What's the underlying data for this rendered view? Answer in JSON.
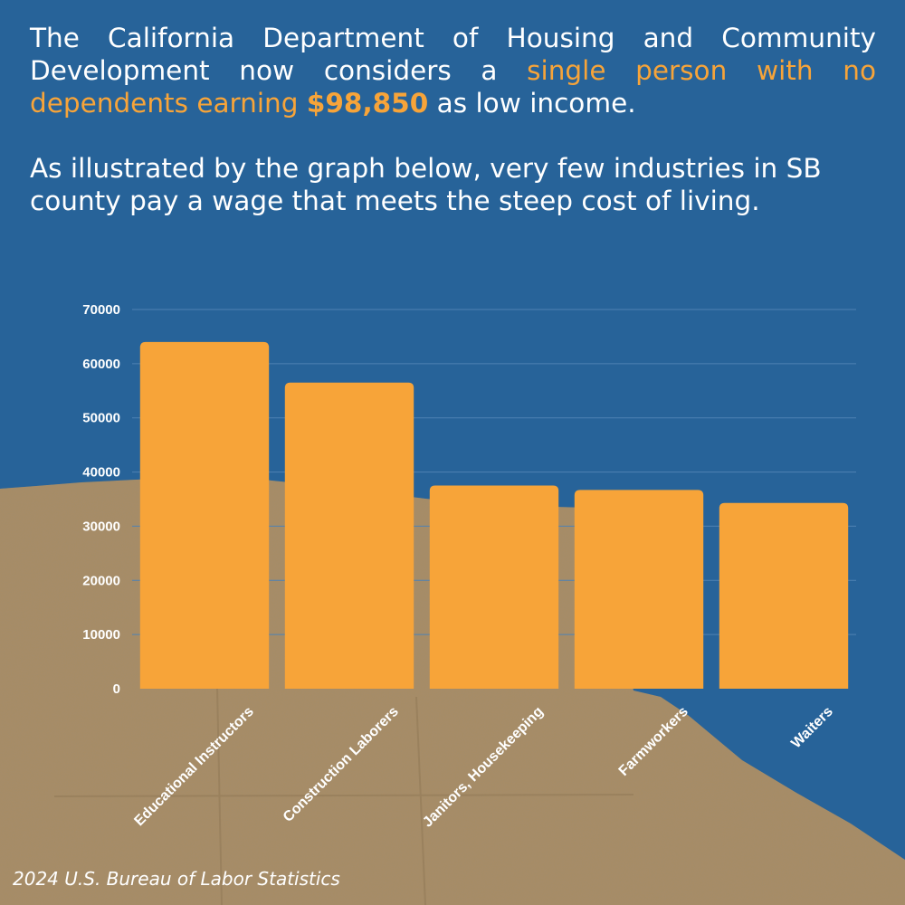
{
  "intro": {
    "line1_a": "The California Department of Housing and Community Development now considers a ",
    "line1_highlight": "single person with no dependents earning ",
    "line1_amount": "$98,850",
    "line1_b": " as low income.",
    "paragraph2": "As illustrated by the graph below, very few industries in SB county pay a wage that meets the steep cost of living."
  },
  "colors": {
    "background": "#276399",
    "bar": "#f7a439",
    "highlight": "#f7a439",
    "cardboard": "#a88c65",
    "text": "#ffffff"
  },
  "chart_data": {
    "type": "bar",
    "categories": [
      "Educational Instructors",
      "Construction Laborers",
      "Janitors, Housekeeping",
      "Farmworkers",
      "Waiters"
    ],
    "values": [
      64000,
      56500,
      37500,
      36700,
      34300
    ],
    "ylim": [
      0,
      70000
    ],
    "yticks": [
      0,
      10000,
      20000,
      30000,
      40000,
      50000,
      60000,
      70000
    ],
    "grid": true,
    "legend": "none",
    "title": "",
    "xlabel": "",
    "ylabel": ""
  },
  "source": "2024 U.S. Bureau of Labor Statistics"
}
